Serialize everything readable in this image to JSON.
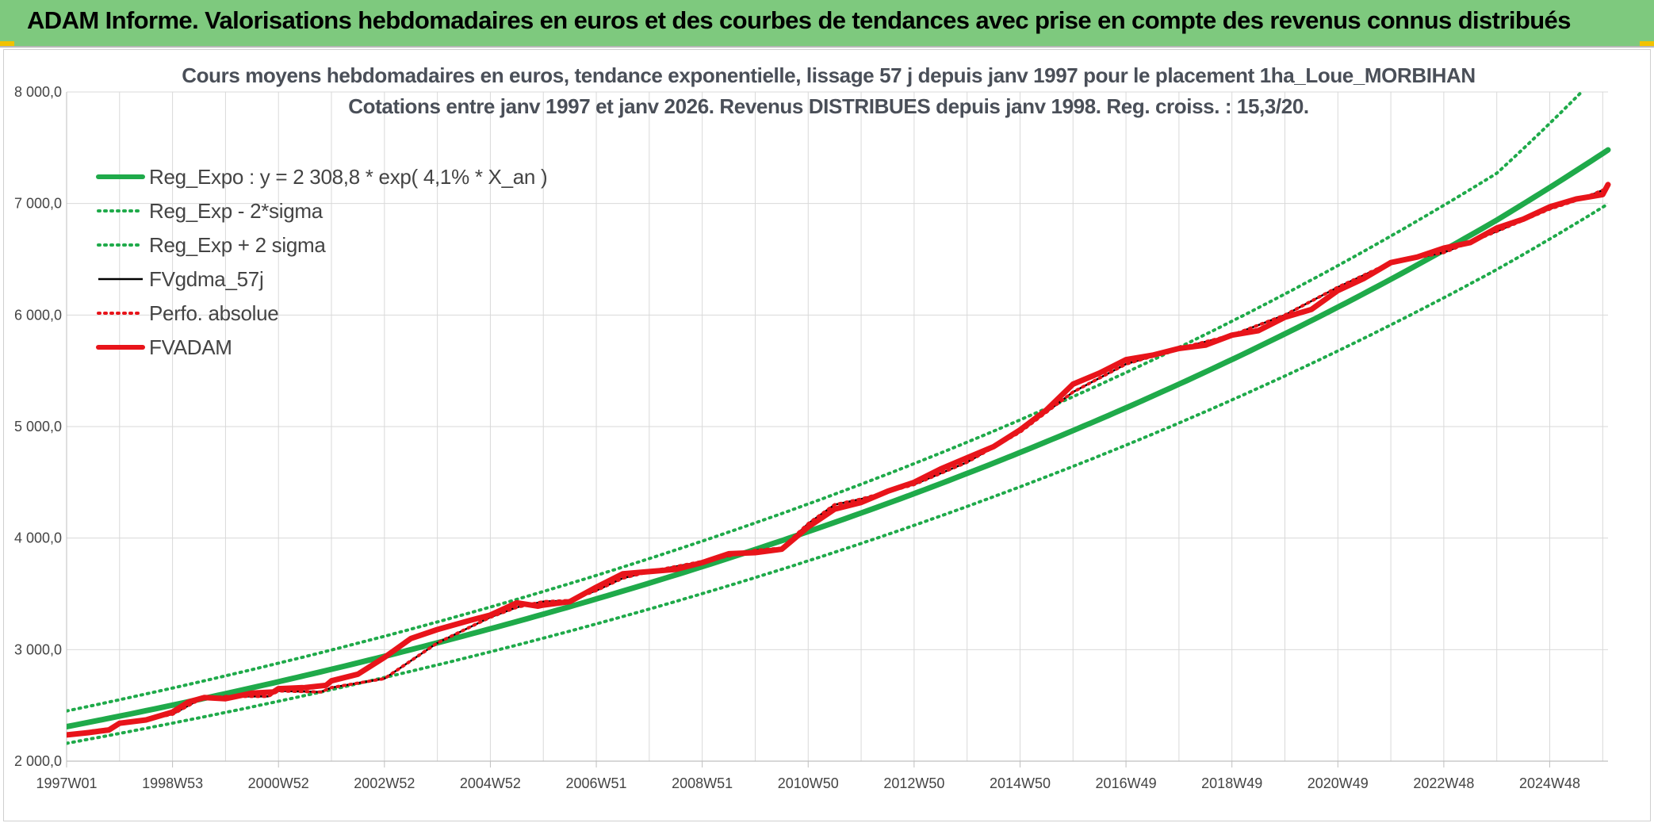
{
  "banner": {
    "title": "ADAM Informe. Valorisations hebdomadaires en euros et des courbes de tendances avec prise en compte des revenus connus distribués"
  },
  "colors": {
    "banner_bg": "#7ec97e",
    "reg_green": "#1faa4a",
    "red": "#e8141a",
    "black": "#000000",
    "grid": "#d9d9d9"
  },
  "chart_data": {
    "type": "line",
    "title": [
      "Cours moyens hebdomadaires en euros, tendance exponentielle, lissage 57 j depuis janv 1997 pour le placement 1ha_Loue_MORBIHAN",
      "Cotations entre janv 1997 et janv 2026. Revenus DISTRIBUES depuis janv 1998. Reg. croiss. : 15,3/20."
    ],
    "xlabel": "",
    "ylabel": "",
    "ylim": [
      2000,
      8000
    ],
    "xlim": [
      1997.0,
      2026.1
    ],
    "grid": true,
    "legend_position": "top-left",
    "x_tick_labels": [
      {
        "x": 1997.0,
        "label": "1997W01"
      },
      {
        "x": 1999.0,
        "label": "1998W53"
      },
      {
        "x": 2001.0,
        "label": "2000W52"
      },
      {
        "x": 2003.0,
        "label": "2002W52"
      },
      {
        "x": 2005.0,
        "label": "2004W52"
      },
      {
        "x": 2007.0,
        "label": "2006W51"
      },
      {
        "x": 2009.0,
        "label": "2008W51"
      },
      {
        "x": 2011.0,
        "label": "2010W50"
      },
      {
        "x": 2013.0,
        "label": "2012W50"
      },
      {
        "x": 2015.0,
        "label": "2014W50"
      },
      {
        "x": 2017.0,
        "label": "2016W49"
      },
      {
        "x": 2019.0,
        "label": "2018W49"
      },
      {
        "x": 2021.0,
        "label": "2020W49"
      },
      {
        "x": 2023.0,
        "label": "2022W48"
      },
      {
        "x": 2025.0,
        "label": "2024W48"
      }
    ],
    "y_tick_labels": [
      {
        "y": 2000,
        "label": "2 000,0"
      },
      {
        "y": 3000,
        "label": "3 000,0"
      },
      {
        "y": 4000,
        "label": "4 000,0"
      },
      {
        "y": 5000,
        "label": "5 000,0"
      },
      {
        "y": 6000,
        "label": "6 000,0"
      },
      {
        "y": 7000,
        "label": "7 000,0"
      },
      {
        "y": 8000,
        "label": "8 000,0"
      }
    ],
    "series": [
      {
        "name": "Reg_Expo : y = 2 308,8 * exp( 4,1% *  X_an )",
        "style": "solid-thick",
        "color": "#1faa4a",
        "x": [
          1997.0,
          2000.0,
          2003.0,
          2006.0,
          2009.0,
          2012.0,
          2015.0,
          2018.0,
          2021.0,
          2024.0,
          2026.1
        ],
        "y": [
          2309,
          2605,
          2940,
          3318,
          3744,
          4225,
          4768,
          5380,
          6071,
          6851,
          7480
        ]
      },
      {
        "name": "Reg_Exp - 2*sigma",
        "style": "dotted",
        "color": "#1faa4a",
        "x": [
          1997.0,
          2000.0,
          2003.0,
          2006.0,
          2009.0,
          2012.0,
          2015.0,
          2018.0,
          2021.0,
          2024.0,
          2026.1
        ],
        "y": [
          2160,
          2437,
          2750,
          3103,
          3502,
          3952,
          4460,
          5032,
          5678,
          6408,
          6996
        ]
      },
      {
        "name": "Reg_Exp + 2 sigma",
        "style": "dotted",
        "color": "#1faa4a",
        "x": [
          1997.0,
          2000.0,
          2003.0,
          2006.0,
          2009.0,
          2012.0,
          2015.0,
          2018.0,
          2021.0,
          2024.0,
          2025.6
        ],
        "y": [
          2450,
          2765,
          3120,
          3521,
          3973,
          4483,
          5060,
          5710,
          6443,
          7271,
          8000
        ]
      },
      {
        "name": "FVgdma_57j",
        "style": "solid-thin",
        "color": "#000000",
        "x": [
          1997.0,
          1997.8,
          1998.0,
          1999.0,
          1999.5,
          2000.0,
          2000.8,
          2001.0,
          2001.8,
          2002.0,
          2003.0,
          2004.0,
          2005.0,
          2005.5,
          2006.0,
          2006.5,
          2007.0,
          2007.5,
          2008.0,
          2009.0,
          2010.0,
          2010.5,
          2011.0,
          2011.5,
          2012.0,
          2013.0,
          2014.0,
          2015.0,
          2016.0,
          2017.0,
          2018.0,
          2019.0,
          2020.0,
          2021.0,
          2022.0,
          2023.0,
          2024.0,
          2025.0,
          2025.7,
          2026.1
        ],
        "y": [
          2240,
          2290,
          2330,
          2420,
          2550,
          2580,
          2580,
          2630,
          2620,
          2660,
          2740,
          3060,
          3290,
          3380,
          3430,
          3440,
          3530,
          3640,
          3700,
          3790,
          3890,
          3910,
          4130,
          4300,
          4350,
          4480,
          4680,
          4950,
          5310,
          5560,
          5700,
          5820,
          6000,
          6250,
          6470,
          6560,
          6750,
          6950,
          7060,
          7140
        ]
      },
      {
        "name": "Perfo. absolue",
        "style": "dotted",
        "color": "#e8141a",
        "x": [
          1997.0,
          1997.8,
          1998.0,
          1999.0,
          1999.5,
          2000.0,
          2000.8,
          2001.0,
          2001.8,
          2002.0,
          2003.0,
          2004.0,
          2005.0,
          2005.5,
          2006.0,
          2006.5,
          2007.0,
          2007.5,
          2008.0,
          2009.0,
          2010.0,
          2010.5,
          2011.0,
          2011.5,
          2012.0,
          2013.0,
          2014.0,
          2015.0,
          2016.0,
          2017.0,
          2018.0,
          2019.0,
          2020.0,
          2021.0,
          2022.0,
          2023.0,
          2024.0,
          2025.0,
          2025.7,
          2026.1
        ],
        "y": [
          2240,
          2290,
          2330,
          2420,
          2550,
          2580,
          2580,
          2630,
          2620,
          2660,
          2740,
          3060,
          3290,
          3380,
          3430,
          3440,
          3530,
          3640,
          3700,
          3790,
          3890,
          3910,
          4130,
          4300,
          4350,
          4480,
          4680,
          4950,
          5310,
          5560,
          5700,
          5820,
          6000,
          6250,
          6470,
          6560,
          6750,
          6950,
          7060,
          7140
        ]
      },
      {
        "name": "FVADAM",
        "style": "solid-thick",
        "color": "#e8141a",
        "x": [
          1997.0,
          1997.4,
          1997.8,
          1998.0,
          1998.5,
          1999.0,
          1999.3,
          1999.6,
          2000.0,
          2000.5,
          2000.9,
          2001.0,
          2001.5,
          2001.9,
          2002.0,
          2002.5,
          2003.0,
          2003.5,
          2004.0,
          2004.6,
          2005.0,
          2005.5,
          2005.9,
          2006.0,
          2006.5,
          2007.0,
          2007.5,
          2008.0,
          2008.5,
          2009.0,
          2009.5,
          2010.0,
          2010.5,
          2011.0,
          2011.5,
          2012.0,
          2012.5,
          2013.0,
          2013.5,
          2014.0,
          2014.5,
          2015.0,
          2015.5,
          2016.0,
          2016.5,
          2017.0,
          2017.5,
          2018.0,
          2018.5,
          2019.0,
          2019.5,
          2020.0,
          2020.5,
          2021.0,
          2021.5,
          2022.0,
          2022.5,
          2023.0,
          2023.5,
          2024.0,
          2024.5,
          2025.0,
          2025.5,
          2026.0,
          2026.1
        ],
        "y": [
          2235,
          2255,
          2280,
          2340,
          2370,
          2440,
          2530,
          2570,
          2560,
          2610,
          2620,
          2650,
          2660,
          2680,
          2720,
          2780,
          2930,
          3100,
          3180,
          3260,
          3310,
          3420,
          3390,
          3400,
          3430,
          3560,
          3680,
          3700,
          3720,
          3780,
          3860,
          3870,
          3900,
          4100,
          4260,
          4320,
          4420,
          4500,
          4620,
          4720,
          4820,
          4970,
          5150,
          5380,
          5480,
          5600,
          5640,
          5700,
          5730,
          5820,
          5860,
          5980,
          6050,
          6220,
          6330,
          6470,
          6520,
          6600,
          6650,
          6780,
          6860,
          6970,
          7040,
          7080,
          7170
        ]
      }
    ]
  }
}
